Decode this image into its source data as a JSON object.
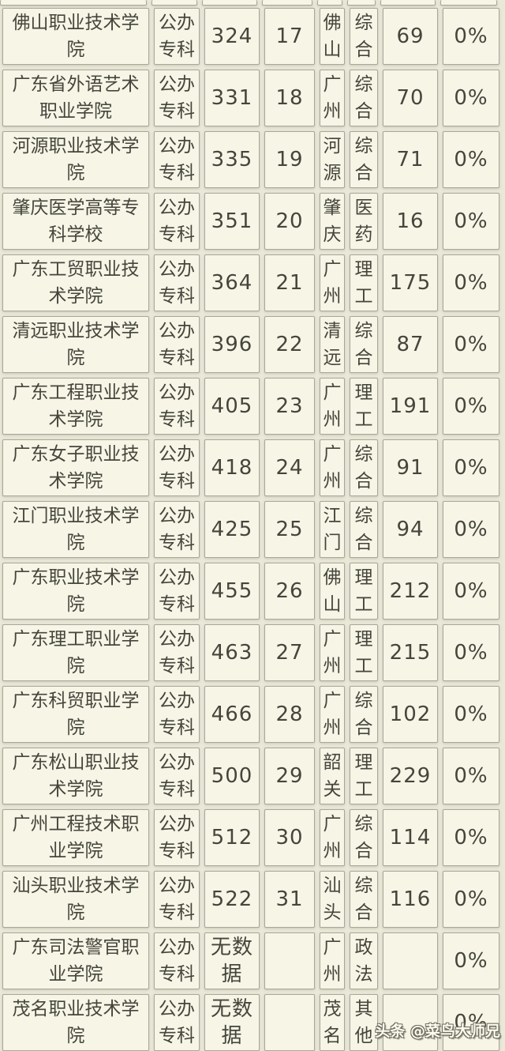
{
  "chart_data": {
    "type": "table",
    "note_visible_columns": [
      "school_name",
      "run_type",
      "score",
      "rank",
      "city",
      "category",
      "count",
      "percent"
    ],
    "rows": [
      {
        "school": "佛山职业技术学院",
        "type": "公办专科",
        "score": "324",
        "rank": "17",
        "city": "佛山",
        "category": "综合",
        "count": "69",
        "percent": "0%"
      },
      {
        "school": "广东省外语艺术职业学院",
        "type": "公办专科",
        "score": "331",
        "rank": "18",
        "city": "广州",
        "category": "综合",
        "count": "70",
        "percent": "0%"
      },
      {
        "school": "河源职业技术学院",
        "type": "公办专科",
        "score": "335",
        "rank": "19",
        "city": "河源",
        "category": "综合",
        "count": "71",
        "percent": "0%"
      },
      {
        "school": "肇庆医学高等专科学校",
        "type": "公办专科",
        "score": "351",
        "rank": "20",
        "city": "肇庆",
        "category": "医药",
        "count": "16",
        "percent": "0%"
      },
      {
        "school": "广东工贸职业技术学院",
        "type": "公办专科",
        "score": "364",
        "rank": "21",
        "city": "广州",
        "category": "理工",
        "count": "175",
        "percent": "0%"
      },
      {
        "school": "清远职业技术学院",
        "type": "公办专科",
        "score": "396",
        "rank": "22",
        "city": "清远",
        "category": "综合",
        "count": "87",
        "percent": "0%"
      },
      {
        "school": "广东工程职业技术学院",
        "type": "公办专科",
        "score": "405",
        "rank": "23",
        "city": "广州",
        "category": "理工",
        "count": "191",
        "percent": "0%"
      },
      {
        "school": "广东女子职业技术学院",
        "type": "公办专科",
        "score": "418",
        "rank": "24",
        "city": "广州",
        "category": "综合",
        "count": "91",
        "percent": "0%"
      },
      {
        "school": "江门职业技术学院",
        "type": "公办专科",
        "score": "425",
        "rank": "25",
        "city": "江门",
        "category": "综合",
        "count": "94",
        "percent": "0%"
      },
      {
        "school": "广东职业技术学院",
        "type": "公办专科",
        "score": "455",
        "rank": "26",
        "city": "佛山",
        "category": "理工",
        "count": "212",
        "percent": "0%"
      },
      {
        "school": "广东理工职业学院",
        "type": "公办专科",
        "score": "463",
        "rank": "27",
        "city": "广州",
        "category": "理工",
        "count": "215",
        "percent": "0%"
      },
      {
        "school": "广东科贸职业学院",
        "type": "公办专科",
        "score": "466",
        "rank": "28",
        "city": "广州",
        "category": "综合",
        "count": "102",
        "percent": "0%"
      },
      {
        "school": "广东松山职业技术学院",
        "type": "公办专科",
        "score": "500",
        "rank": "29",
        "city": "韶关",
        "category": "理工",
        "count": "229",
        "percent": "0%"
      },
      {
        "school": "广州工程技术职业学院",
        "type": "公办专科",
        "score": "512",
        "rank": "30",
        "city": "广州",
        "category": "综合",
        "count": "114",
        "percent": "0%"
      },
      {
        "school": "汕头职业技术学院",
        "type": "公办专科",
        "score": "522",
        "rank": "31",
        "city": "汕头",
        "category": "综合",
        "count": "116",
        "percent": "0%"
      },
      {
        "school": "广东司法警官职业学院",
        "type": "公办专科",
        "score": "无数据",
        "rank": "",
        "city": "广州",
        "category": "政法",
        "count": "",
        "percent": "0%"
      },
      {
        "school": "茂名职业技术学院",
        "type": "公办专科",
        "score": "无数据",
        "rank": "",
        "city": "茂名",
        "category": "其他",
        "count": "",
        "percent": "0%"
      }
    ]
  },
  "watermark": "头条 @菜鸟大师兄",
  "colors": {
    "page_bg": "#eae8d8",
    "cell_bg": "#f6f5e6",
    "cell_border": "#a8a79a",
    "text": "#45453c",
    "watermark_text": "#fdfcef"
  }
}
